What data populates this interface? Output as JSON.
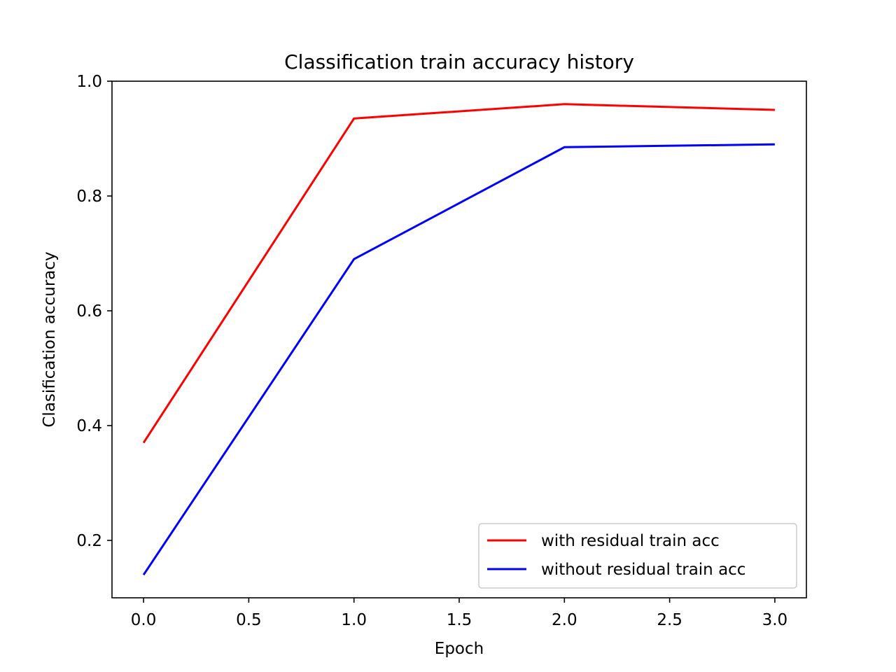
{
  "chart_data": {
    "type": "line",
    "title": "Classification train accuracy history",
    "xlabel": "Epoch",
    "ylabel": "Clasification accuracy",
    "x": [
      0,
      1,
      2,
      3
    ],
    "series": [
      {
        "name": "with residual train acc",
        "color": "#ff0000",
        "values": [
          0.37,
          0.935,
          0.96,
          0.95
        ]
      },
      {
        "name": "without residual train acc",
        "color": "#0000ff",
        "values": [
          0.14,
          0.69,
          0.885,
          0.89
        ]
      }
    ],
    "xlim": [
      -0.15,
      3.15
    ],
    "ylim": [
      0.1,
      1.0
    ],
    "xticks": [
      {
        "value": 0.0,
        "label": "0.0"
      },
      {
        "value": 0.5,
        "label": "0.5"
      },
      {
        "value": 1.0,
        "label": "1.0"
      },
      {
        "value": 1.5,
        "label": "1.5"
      },
      {
        "value": 2.0,
        "label": "2.0"
      },
      {
        "value": 2.5,
        "label": "2.5"
      },
      {
        "value": 3.0,
        "label": "3.0"
      }
    ],
    "yticks": [
      {
        "value": 0.2,
        "label": "0.2"
      },
      {
        "value": 0.4,
        "label": "0.4"
      },
      {
        "value": 0.6,
        "label": "0.6"
      },
      {
        "value": 0.8,
        "label": "0.8"
      },
      {
        "value": 1.0,
        "label": "1.0"
      }
    ],
    "grid": false,
    "legend_position": "lower-right"
  }
}
